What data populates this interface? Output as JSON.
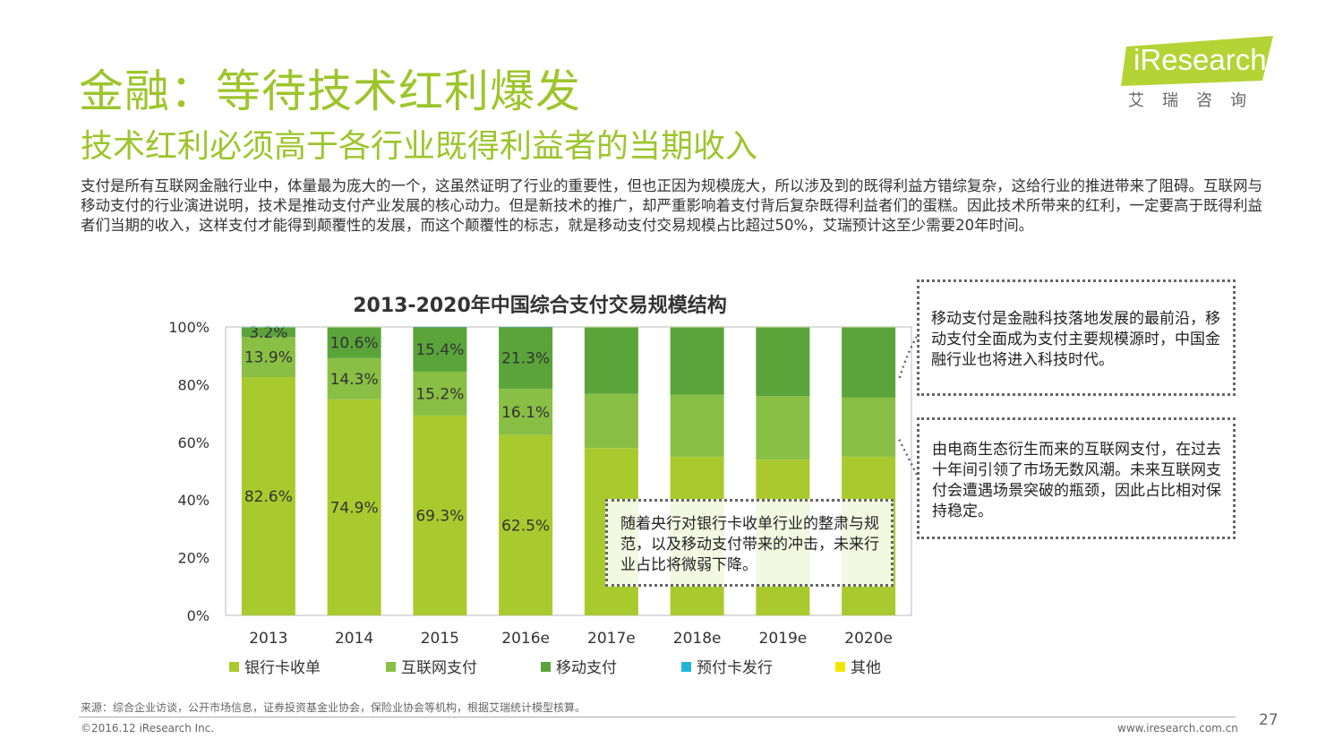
{
  "page": {
    "title": "金融：等待技术红利爆发",
    "subtitle": "技术红利必须高于各行业既得利益者的当期收入",
    "intro": "支付是所有互联网金融行业中，体量最为庞大的一个，这虽然证明了行业的重要性，但也正因为规模庞大，所以涉及到的既得利益方错综复杂，这给行业的推进带来了阻碍。互联网与移动支付的行业演进说明，技术是推动支付产业发展的核心动力。但是新技术的推广，却严重影响着支付背后复杂既得利益者们的蛋糕。因此技术所带来的红利，一定要高于既得利益者们当期的收入，这样支付才能得到颠覆性的发展，而这个颠覆性的标志，就是移动支付交易规模占比超过50%，艾瑞预计这至少需要20年时间。"
  },
  "logo": {
    "wordmark": "iResearch",
    "cn": "艾瑞咨询",
    "color": "#b4d334"
  },
  "callouts": {
    "mobile": "移动支付是金融科技落地发展的最前沿，移动支付全面成为支付主要规模源时，中国金融行业也将进入科技时代。",
    "internet": "由电商生态衍生而来的互联网支付，在过去十年间引领了市场无数风潮。未来互联网支付会遭遇场景突破的瓶颈，因此占比相对保持稳定。",
    "bank": "随着央行对银行卡收单行业的整肃与规范，以及移动支付带来的冲击，未来行业占比将微弱下降。"
  },
  "chart_data": {
    "type": "bar",
    "stacked": true,
    "title": "2013-2020年中国综合支付交易规模结构",
    "categories": [
      "2013",
      "2014",
      "2015",
      "2016e",
      "2017e",
      "2018e",
      "2019e",
      "2020e"
    ],
    "series": [
      {
        "name": "银行卡收单",
        "color": "#a9ca2e",
        "values": [
          82.6,
          74.9,
          69.3,
          62.5,
          58.0,
          55.0,
          54.0,
          55.0
        ],
        "labels": [
          "82.6%",
          "74.9%",
          "69.3%",
          "62.5%",
          "",
          "",
          "",
          ""
        ]
      },
      {
        "name": "互联网支付",
        "color": "#88bf44",
        "values": [
          13.9,
          14.3,
          15.2,
          16.1,
          18.8,
          21.5,
          22.0,
          20.5
        ],
        "labels": [
          "13.9%",
          "14.3%",
          "15.2%",
          "16.1%",
          "",
          "",
          "",
          ""
        ]
      },
      {
        "name": "移动支付",
        "color": "#5aa43a",
        "values": [
          3.2,
          10.6,
          15.4,
          21.3,
          23.0,
          23.3,
          23.8,
          24.3
        ],
        "labels": [
          "3.2%",
          "10.6%",
          "15.4%",
          "21.3%",
          "",
          "",
          "",
          ""
        ]
      },
      {
        "name": "预付卡发行",
        "color": "#21b6d9",
        "values": [
          0.2,
          0.1,
          0.1,
          0.1,
          0.1,
          0.1,
          0.1,
          0.1
        ],
        "labels": [
          "",
          "",
          "",
          "",
          "",
          "",
          "",
          ""
        ]
      },
      {
        "name": "其他",
        "color": "#f2e600",
        "values": [
          0.1,
          0.1,
          0.0,
          0.0,
          0.1,
          0.1,
          0.1,
          0.1
        ],
        "labels": [
          "",
          "",
          "",
          "",
          "",
          "",
          "",
          ""
        ]
      }
    ],
    "yticks": [
      "0%",
      "20%",
      "40%",
      "60%",
      "80%",
      "100%"
    ],
    "ylim": [
      0,
      100
    ],
    "legend": "bottom"
  },
  "footer": {
    "source": "来源：综合企业访谈，公开市场信息，证券投资基金业协会，保险业协会等机构，根据艾瑞统计模型核算。",
    "copyright": "©2016.12 iResearch Inc.",
    "website": "www.iresearch.com.cn",
    "page_number": "27"
  }
}
